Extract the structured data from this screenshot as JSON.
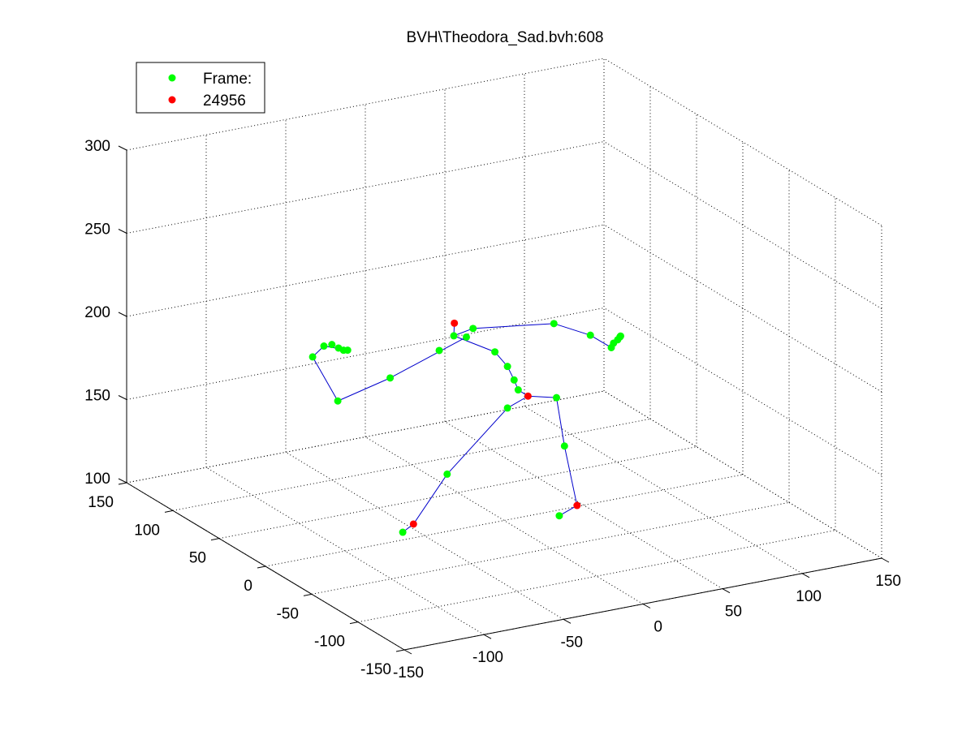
{
  "chart_data": {
    "type": "scatter",
    "title": "BVH\\Theodora_Sad.bvh:608",
    "xlabel": "",
    "ylabel": "",
    "zlabel": "",
    "x_ticks": [
      "-150",
      "-100",
      "-50",
      "0",
      "50",
      "100",
      "150"
    ],
    "y_ticks": [
      "-150",
      "-100",
      "-50",
      "0",
      "50",
      "100",
      "150"
    ],
    "z_ticks": [
      "100",
      "150",
      "200",
      "250",
      "300"
    ],
    "xlim": [
      -150,
      150
    ],
    "ylim": [
      -150,
      150
    ],
    "zlim": [
      100,
      300
    ],
    "grid": true,
    "legend": {
      "placement": "top-left",
      "entries": [
        {
          "label": "Frame:",
          "color": "#00ff00"
        },
        {
          "label": "24956",
          "color": "#ff0000"
        }
      ]
    },
    "colors": {
      "joint": "#00ff00",
      "end_effector": "#ff0000",
      "bone": "#0000cc"
    },
    "series": [
      {
        "marker_color": "#00ff00",
        "points": [
          {
            "x": -20,
            "y": 20,
            "z": 208
          },
          {
            "x": -15,
            "y": 15,
            "z": 208
          },
          {
            "x": -28,
            "y": 22,
            "z": 200
          },
          {
            "x": -5,
            "y": 25,
            "z": 208
          },
          {
            "x": 40,
            "y": 15,
            "z": 206
          },
          {
            "x": 60,
            "y": 10,
            "z": 197
          },
          {
            "x": 72,
            "y": 8,
            "z": 188
          },
          {
            "x": 74,
            "y": 9,
            "z": 190
          },
          {
            "x": 76,
            "y": 8,
            "z": 192
          },
          {
            "x": 78,
            "y": 9,
            "z": 193
          },
          {
            "x": 79,
            "y": 10,
            "z": 193
          },
          {
            "x": -60,
            "y": 20,
            "z": 190
          },
          {
            "x": -90,
            "y": 25,
            "z": 180
          },
          {
            "x": -100,
            "y": 35,
            "z": 205
          },
          {
            "x": -90,
            "y": 40,
            "z": 208
          },
          {
            "x": -85,
            "y": 40,
            "z": 208
          },
          {
            "x": -82,
            "y": 38,
            "z": 206
          },
          {
            "x": -80,
            "y": 36,
            "z": 205
          },
          {
            "x": -78,
            "y": 35,
            "z": 205
          },
          {
            "x": 0,
            "y": 10,
            "z": 198
          },
          {
            "x": 5,
            "y": 5,
            "z": 190
          },
          {
            "x": 8,
            "y": 3,
            "z": 182
          },
          {
            "x": 10,
            "y": 2,
            "z": 176
          },
          {
            "x": 30,
            "y": -5,
            "z": 170
          },
          {
            "x": 5,
            "y": 5,
            "z": 165
          },
          {
            "x": 35,
            "y": -5,
            "z": 140
          },
          {
            "x": 30,
            "y": -8,
            "z": 100
          },
          {
            "x": -30,
            "y": 10,
            "z": 130
          },
          {
            "x": -55,
            "y": 15,
            "z": 98
          }
        ]
      },
      {
        "marker_color": "#ff0000",
        "points": [
          {
            "x": -15,
            "y": 28,
            "z": 212
          },
          {
            "x": 15,
            "y": 0,
            "z": 172
          },
          {
            "x": 40,
            "y": -10,
            "z": 105
          },
          {
            "x": -50,
            "y": 12,
            "z": 103
          }
        ]
      }
    ]
  }
}
